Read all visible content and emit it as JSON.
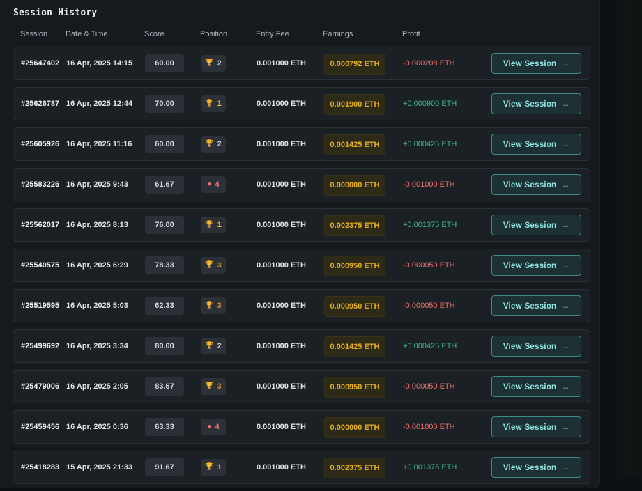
{
  "title": "Session History",
  "columns": [
    "Session",
    "Date & Time",
    "Score",
    "Position",
    "Entry Fee",
    "Earnings",
    "Profit"
  ],
  "view_button_label": "View Session",
  "colors": {
    "positive": "#3fb98a",
    "negative": "#f0706b",
    "earnings": "#e6b020",
    "accent": "#8ee5e0"
  },
  "position_icons": {
    "1": {
      "icon": "trophy-gold-icon",
      "glyph": "🏆",
      "color": "#e8b62b"
    },
    "2": {
      "icon": "trophy-silver-icon",
      "glyph": "🏆",
      "color": "#c9ced3"
    },
    "3": {
      "icon": "trophy-bronze-icon",
      "glyph": "🏆",
      "color": "#d9893a"
    },
    "4": {
      "icon": "no-place-icon",
      "glyph": "●",
      "color": "#f0706b"
    }
  },
  "sessions": [
    {
      "id": "#25647402",
      "datetime": "16 Apr, 2025 14:15",
      "score": "60.00",
      "position": "2",
      "entry_fee": "0.001000 ETH",
      "earnings": "0.000792 ETH",
      "profit": "-0.000208 ETH",
      "profit_sign": "negative"
    },
    {
      "id": "#25626787",
      "datetime": "16 Apr, 2025 12:44",
      "score": "70.00",
      "position": "1",
      "entry_fee": "0.001000 ETH",
      "earnings": "0.001900 ETH",
      "profit": "+0.000900 ETH",
      "profit_sign": "positive"
    },
    {
      "id": "#25605926",
      "datetime": "16 Apr, 2025 11:16",
      "score": "60.00",
      "position": "2",
      "entry_fee": "0.001000 ETH",
      "earnings": "0.001425 ETH",
      "profit": "+0.000425 ETH",
      "profit_sign": "positive"
    },
    {
      "id": "#25583226",
      "datetime": "16 Apr, 2025 9:43",
      "score": "61.67",
      "position": "4",
      "entry_fee": "0.001000 ETH",
      "earnings": "0.000000 ETH",
      "profit": "-0.001000 ETH",
      "profit_sign": "negative"
    },
    {
      "id": "#25562017",
      "datetime": "16 Apr, 2025 8:13",
      "score": "76.00",
      "position": "1",
      "entry_fee": "0.001000 ETH",
      "earnings": "0.002375 ETH",
      "profit": "+0.001375 ETH",
      "profit_sign": "positive"
    },
    {
      "id": "#25540575",
      "datetime": "16 Apr, 2025 6:29",
      "score": "78.33",
      "position": "3",
      "entry_fee": "0.001000 ETH",
      "earnings": "0.000950 ETH",
      "profit": "-0.000050 ETH",
      "profit_sign": "negative"
    },
    {
      "id": "#25519595",
      "datetime": "16 Apr, 2025 5:03",
      "score": "62.33",
      "position": "3",
      "entry_fee": "0.001000 ETH",
      "earnings": "0.000950 ETH",
      "profit": "-0.000050 ETH",
      "profit_sign": "negative"
    },
    {
      "id": "#25499692",
      "datetime": "16 Apr, 2025 3:34",
      "score": "80.00",
      "position": "2",
      "entry_fee": "0.001000 ETH",
      "earnings": "0.001425 ETH",
      "profit": "+0.000425 ETH",
      "profit_sign": "positive"
    },
    {
      "id": "#25479006",
      "datetime": "16 Apr, 2025 2:05",
      "score": "83.67",
      "position": "3",
      "entry_fee": "0.001000 ETH",
      "earnings": "0.000950 ETH",
      "profit": "-0.000050 ETH",
      "profit_sign": "negative"
    },
    {
      "id": "#25459456",
      "datetime": "16 Apr, 2025 0:36",
      "score": "63.33",
      "position": "4",
      "entry_fee": "0.001000 ETH",
      "earnings": "0.000000 ETH",
      "profit": "-0.001000 ETH",
      "profit_sign": "negative"
    },
    {
      "id": "#25418283",
      "datetime": "15 Apr, 2025 21:33",
      "score": "91.67",
      "position": "1",
      "entry_fee": "0.001000 ETH",
      "earnings": "0.002375 ETH",
      "profit": "+0.001375 ETH",
      "profit_sign": "positive"
    }
  ]
}
